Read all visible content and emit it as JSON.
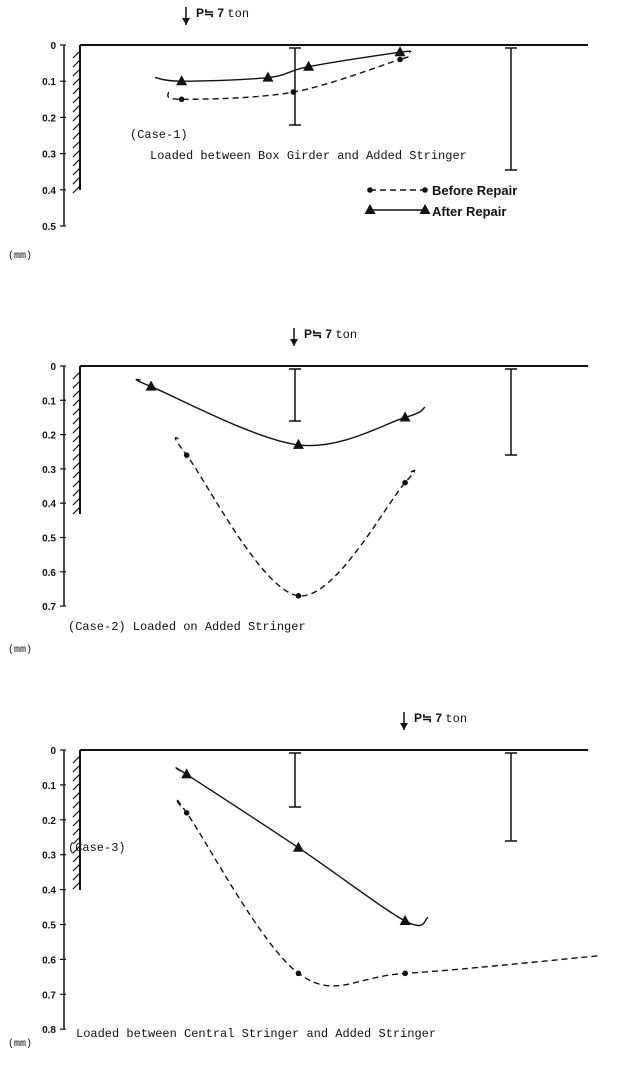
{
  "load_label_prefix": "P≒",
  "load_label_value": "7",
  "load_label_unit": "ton",
  "unit_label": "(mm)",
  "legend": {
    "before": "Before Repair",
    "after": "After Repair"
  },
  "colors": {
    "ink": "#111111",
    "paper": "#ffffff"
  },
  "chart_data": [
    {
      "type": "line",
      "caption_line1": "(Case-1)",
      "caption_line2": "Loaded between Box Girder and Added Stringer",
      "y_ticks": [
        "0",
        "0.1",
        "0.2",
        "0.3",
        "0.4",
        "0.5"
      ],
      "ylim": [
        0,
        0.5
      ],
      "series": [
        {
          "name": "Before Repair",
          "x": [
            0.2,
            0.42,
            0.63
          ],
          "y": [
            0.15,
            0.13,
            0.04
          ]
        },
        {
          "name": "After Repair",
          "x": [
            0.2,
            0.37,
            0.45,
            0.63
          ],
          "y": [
            0.1,
            0.09,
            0.06,
            0.02
          ]
        }
      ]
    },
    {
      "type": "line",
      "caption_line1": "(Case-2) Loaded on Added Stringer",
      "caption_line2": "",
      "y_ticks": [
        "0",
        "0.1",
        "0.2",
        "0.3",
        "0.4",
        "0.5",
        "0.6",
        "0.7"
      ],
      "ylim": [
        0,
        0.7
      ],
      "series": [
        {
          "name": "Before Repair",
          "x": [
            0.21,
            0.43,
            0.64
          ],
          "y": [
            0.26,
            0.67,
            0.34
          ]
        },
        {
          "name": "After Repair",
          "x": [
            0.14,
            0.43,
            0.64
          ],
          "y": [
            0.06,
            0.23,
            0.15
          ]
        }
      ]
    },
    {
      "type": "line",
      "caption_line1": "(Case-3)",
      "caption_line2": "Loaded between Central Stringer and Added Stringer",
      "y_ticks": [
        "0",
        "0.1",
        "0.2",
        "0.3",
        "0.4",
        "0.5",
        "0.6",
        "0.7",
        "0.8"
      ],
      "ylim": [
        0,
        0.8
      ],
      "series": [
        {
          "name": "Before Repair",
          "x": [
            0.21,
            0.43,
            0.64
          ],
          "y": [
            0.18,
            0.64,
            0.64
          ]
        },
        {
          "name": "After Repair",
          "x": [
            0.21,
            0.43,
            0.64
          ],
          "y": [
            0.07,
            0.28,
            0.49
          ]
        }
      ]
    }
  ]
}
